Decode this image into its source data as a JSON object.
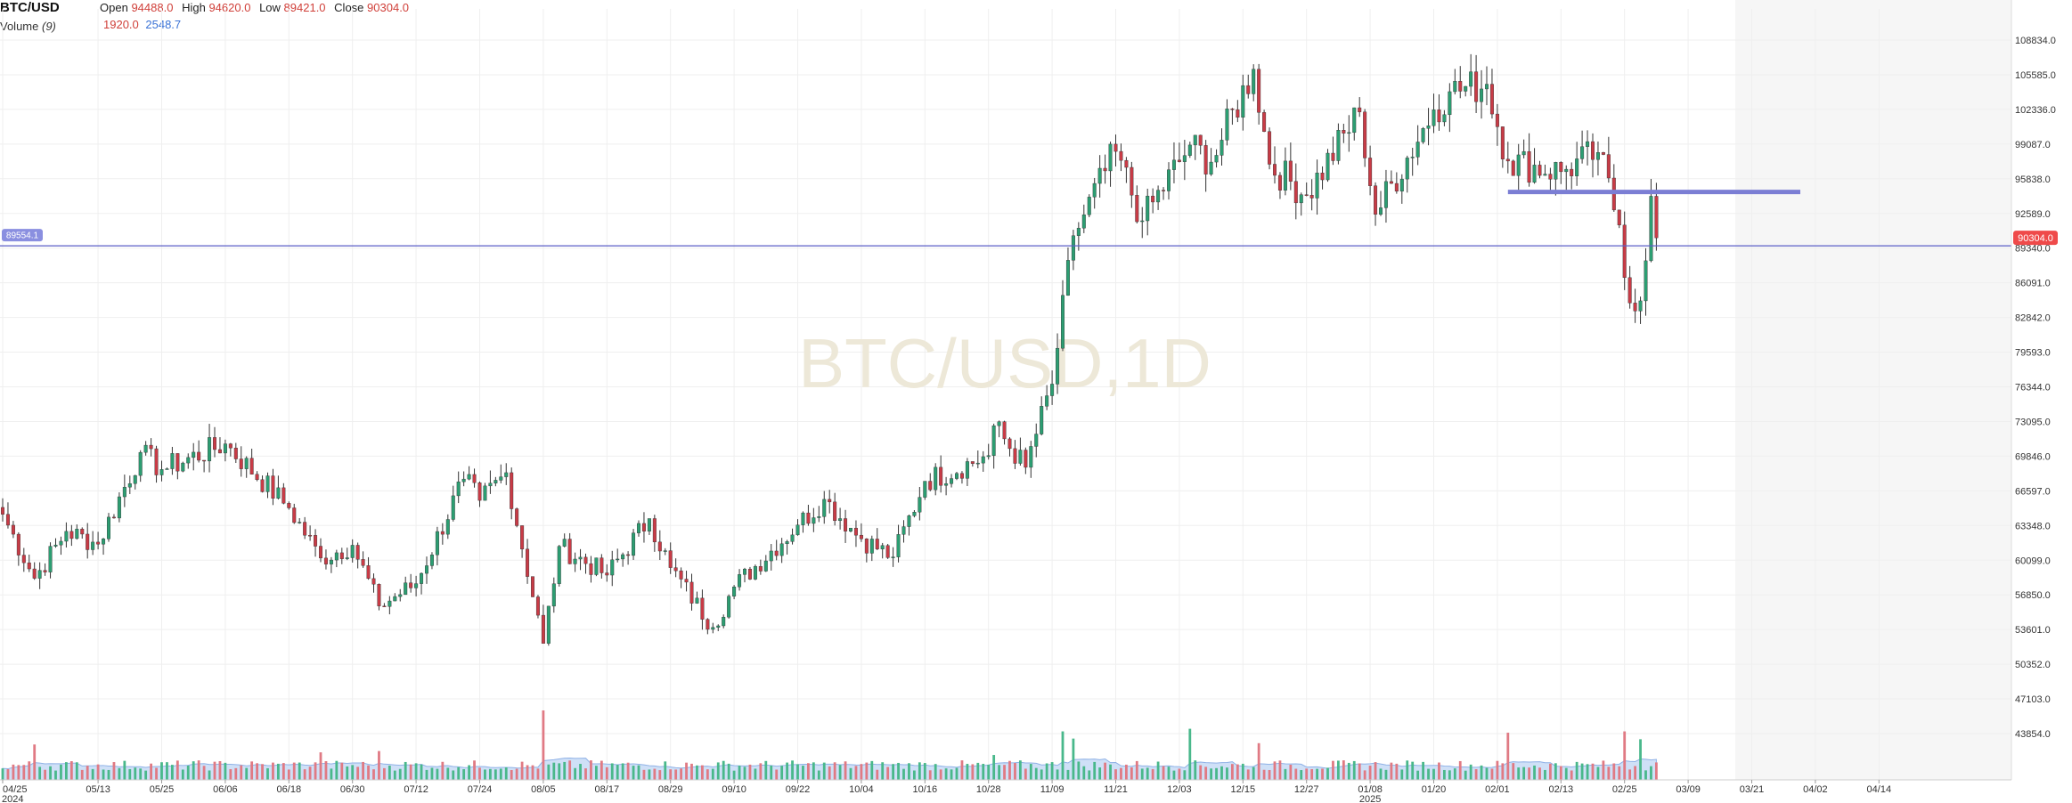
{
  "header": {
    "symbol": "BTC/USD",
    "open_label": "Open",
    "open": "94488.0",
    "high_label": "High",
    "high": "94620.0",
    "low_label": "Low",
    "low": "89421.0",
    "close_label": "Close",
    "close": "90304.0",
    "volume_label": "Volume",
    "volume_period": "(9)",
    "volume_value": "1920.0",
    "volume_ma": "2548.7"
  },
  "watermark": "BTC/USD,1D",
  "price_line_label": "89554.1",
  "last_price_label": "90304.0",
  "colors": {
    "up": "#2c9e72",
    "down": "#c83b46",
    "line": "#5b5fc7",
    "drawn_line": "#7b7ed4",
    "volume_ma_fill": "#cfe0f7",
    "grid": "#efefef"
  },
  "chart_data": {
    "type": "candlestick",
    "title": "BTC/USD",
    "interval": "1D",
    "y_ticks": [
      "108834.0",
      "105585.0",
      "102336.0",
      "99087.0",
      "95838.0",
      "92589.0",
      "89340.0",
      "86091.0",
      "82842.0",
      "79593.0",
      "76344.0",
      "73095.0",
      "69846.0",
      "66597.0",
      "63348.0",
      "60099.0",
      "56850.0",
      "53601.0",
      "50352.0",
      "47103.0",
      "43854.0"
    ],
    "y_range": [
      42000,
      110500
    ],
    "x_ticks": [
      "04/25",
      "05/13",
      "05/25",
      "06/06",
      "06/18",
      "06/30",
      "07/12",
      "07/24",
      "08/05",
      "08/17",
      "08/29",
      "09/10",
      "09/22",
      "10/04",
      "10/16",
      "10/28",
      "11/09",
      "11/21",
      "12/03",
      "12/15",
      "12/27",
      "01/08",
      "01/20",
      "02/01",
      "02/13",
      "02/25",
      "03/09",
      "03/21",
      "04/02",
      "04/14"
    ],
    "x_year_labels": [
      "2024",
      "2025"
    ],
    "horizontal_line_price": 89554.1,
    "drawn_level_price": 94600,
    "close_keypoints": [
      {
        "date": "2024-04-25",
        "close": 64400
      },
      {
        "date": "2024-05-01",
        "close": 58400
      },
      {
        "date": "2024-05-07",
        "close": 62800
      },
      {
        "date": "2024-05-13",
        "close": 61600
      },
      {
        "date": "2024-05-21",
        "close": 70200
      },
      {
        "date": "2024-05-25",
        "close": 68600
      },
      {
        "date": "2024-06-06",
        "close": 71000
      },
      {
        "date": "2024-06-18",
        "close": 65000
      },
      {
        "date": "2024-06-24",
        "close": 60300
      },
      {
        "date": "2024-06-30",
        "close": 61500
      },
      {
        "date": "2024-07-05",
        "close": 55800
      },
      {
        "date": "2024-07-12",
        "close": 57900
      },
      {
        "date": "2024-07-21",
        "close": 67700
      },
      {
        "date": "2024-07-24",
        "close": 65700
      },
      {
        "date": "2024-07-29",
        "close": 68300
      },
      {
        "date": "2024-08-05",
        "close": 52300
      },
      {
        "date": "2024-08-08",
        "close": 61400
      },
      {
        "date": "2024-08-17",
        "close": 58700
      },
      {
        "date": "2024-08-25",
        "close": 64000
      },
      {
        "date": "2024-08-29",
        "close": 59400
      },
      {
        "date": "2024-09-06",
        "close": 53800
      },
      {
        "date": "2024-09-10",
        "close": 57600
      },
      {
        "date": "2024-09-22",
        "close": 63400
      },
      {
        "date": "2024-09-27",
        "close": 65800
      },
      {
        "date": "2024-10-04",
        "close": 62100
      },
      {
        "date": "2024-10-10",
        "close": 60400
      },
      {
        "date": "2024-10-16",
        "close": 67500
      },
      {
        "date": "2024-10-28",
        "close": 69900
      },
      {
        "date": "2024-10-29",
        "close": 72700
      },
      {
        "date": "2024-11-04",
        "close": 68800
      },
      {
        "date": "2024-11-09",
        "close": 76600
      },
      {
        "date": "2024-11-13",
        "close": 90500
      },
      {
        "date": "2024-11-21",
        "close": 98400
      },
      {
        "date": "2024-11-26",
        "close": 91900
      },
      {
        "date": "2024-12-05",
        "close": 99000
      },
      {
        "date": "2024-12-09",
        "close": 97400
      },
      {
        "date": "2024-12-17",
        "close": 106100
      },
      {
        "date": "2024-12-20",
        "close": 97200
      },
      {
        "date": "2024-12-27",
        "close": 94300
      },
      {
        "date": "2025-01-06",
        "close": 102100
      },
      {
        "date": "2025-01-09",
        "close": 92500
      },
      {
        "date": "2025-01-20",
        "close": 102300
      },
      {
        "date": "2025-01-23",
        "close": 104000
      },
      {
        "date": "2025-01-30",
        "close": 104700
      },
      {
        "date": "2025-02-03",
        "close": 97500
      },
      {
        "date": "2025-02-13",
        "close": 96500
      },
      {
        "date": "2025-02-20",
        "close": 98300
      },
      {
        "date": "2025-02-24",
        "close": 91500
      },
      {
        "date": "2025-02-26",
        "close": 84200
      },
      {
        "date": "2025-02-28",
        "close": 84400
      },
      {
        "date": "2025-03-02",
        "close": 94200
      },
      {
        "date": "2025-03-03",
        "close": 90304
      }
    ],
    "volume_spikes": [
      {
        "date": "2024-05-01",
        "volume": 5400
      },
      {
        "date": "2024-06-24",
        "volume": 4200
      },
      {
        "date": "2024-07-05",
        "volume": 4400
      },
      {
        "date": "2024-08-05",
        "volume": 10600
      },
      {
        "date": "2024-10-29",
        "volume": 3800
      },
      {
        "date": "2024-11-11",
        "volume": 7400
      },
      {
        "date": "2024-11-13",
        "volume": 6300
      },
      {
        "date": "2024-12-05",
        "volume": 7800
      },
      {
        "date": "2024-12-18",
        "volume": 5600
      },
      {
        "date": "2025-02-03",
        "volume": 7200
      },
      {
        "date": "2025-02-25",
        "volume": 7400
      },
      {
        "date": "2025-02-28",
        "volume": 6200
      }
    ]
  }
}
